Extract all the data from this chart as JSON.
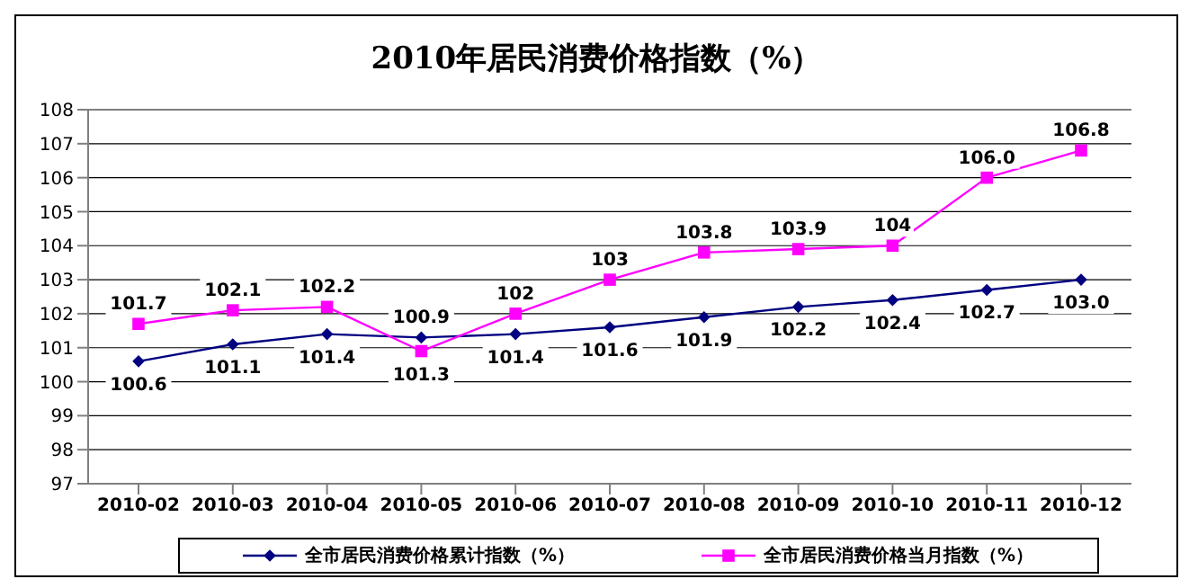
{
  "chart_data": {
    "type": "line",
    "title": "2010年居民消费价格指数（%）",
    "categories": [
      "2010-02",
      "2010-03",
      "2010-04",
      "2010-05",
      "2010-06",
      "2010-07",
      "2010-08",
      "2010-09",
      "2010-10",
      "2010-11",
      "2010-12"
    ],
    "series": [
      {
        "name": "全市居民消费价格累计指数（%）",
        "color": "#000080",
        "marker": "diamond",
        "values": [
          100.6,
          101.1,
          101.4,
          101.3,
          101.4,
          101.6,
          101.9,
          102.2,
          102.4,
          102.7,
          103.0
        ],
        "value_labels": [
          "100.6",
          "101.1",
          "101.4",
          "101.3",
          "101.4",
          "101.6",
          "101.9",
          "102.2",
          "102.4",
          "102.7",
          "103.0"
        ]
      },
      {
        "name": "全市居民消费价格当月指数（%）",
        "color": "#ff00ff",
        "marker": "square",
        "values": [
          101.7,
          102.1,
          102.2,
          100.9,
          102,
          103,
          103.8,
          103.9,
          104,
          106.0,
          106.8
        ],
        "value_labels": [
          "101.7",
          "102.1",
          "102.2",
          "100.9",
          "102",
          "103",
          "103.8",
          "103.9",
          "104",
          "106.0",
          "106.8"
        ]
      }
    ],
    "ylim": [
      97,
      108
    ],
    "yticks": [
      97,
      98,
      99,
      100,
      101,
      102,
      103,
      104,
      105,
      106,
      107,
      108
    ],
    "grid": "y",
    "legend": "bottom"
  }
}
